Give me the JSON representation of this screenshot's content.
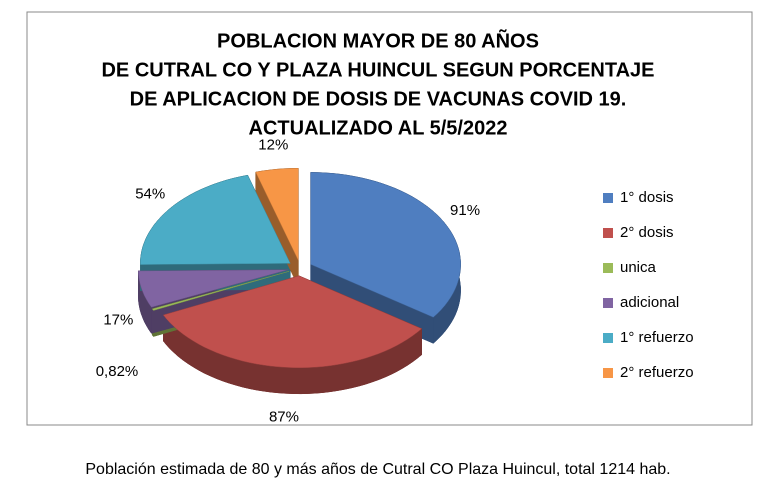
{
  "chart_data": {
    "type": "pie",
    "title": [
      "POBLACION MAYOR DE 80 AÑOS",
      "DE CUTRAL CO Y PLAZA HUINCUL SEGUN PORCENTAJE",
      "DE APLICACION DE DOSIS DE VACUNAS COVID 19.",
      "ACTUALIZADO AL 5/5/2022"
    ],
    "categories": [
      "1° dosis",
      "2° dosis",
      "unica",
      "adicional",
      "1° refuerzo",
      "2° refuerzo"
    ],
    "values": [
      91,
      87,
      0.82,
      17,
      54,
      12
    ],
    "value_labels": [
      "91%",
      "87%",
      "0,82%",
      "17%",
      "54%",
      "12%"
    ],
    "colors": [
      "#4f7ec0",
      "#c0504d",
      "#9bbb59",
      "#8064a2",
      "#4bacc6",
      "#f79646"
    ],
    "legend": "right"
  },
  "caption": "Población estimada de 80 y más  años de Cutral CO Plaza Huincul, total 1214 hab."
}
